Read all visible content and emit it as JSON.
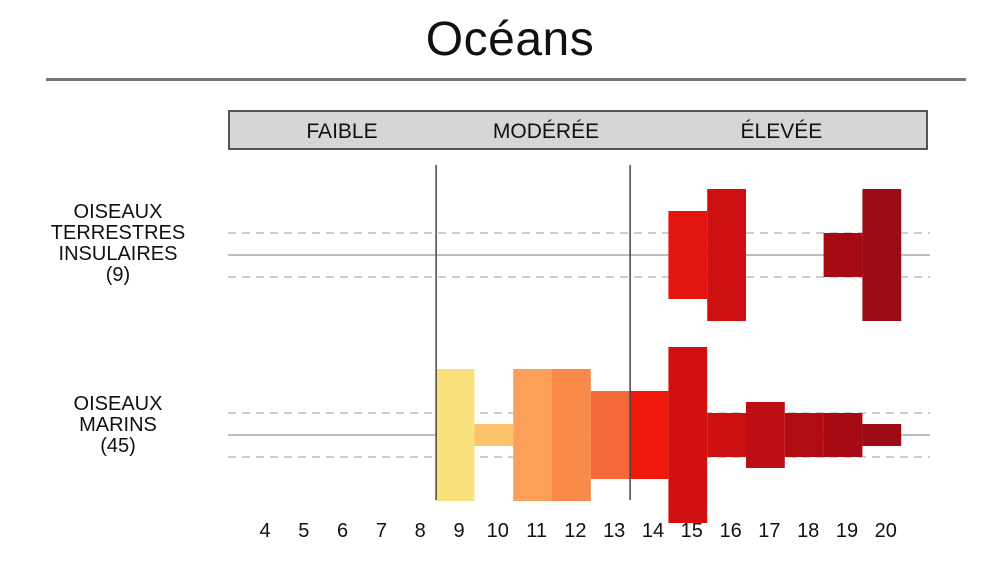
{
  "title": "Océans",
  "chart_data": {
    "type": "bar",
    "x_range": [
      4,
      20
    ],
    "x_ticks": [
      4,
      5,
      6,
      7,
      8,
      9,
      10,
      11,
      12,
      13,
      14,
      15,
      16,
      17,
      18,
      19,
      20
    ],
    "bands": [
      {
        "label": "FAIBLE",
        "from": 4,
        "to": 9
      },
      {
        "label": "MODÉRÉE",
        "from": 9,
        "to": 14
      },
      {
        "label": "ÉLEVÉE",
        "from": 14,
        "to": 20
      }
    ],
    "dividers": [
      9,
      14
    ],
    "colors": [
      "#f9e07a",
      "#fdc26c",
      "#fca059",
      "#f98a4a",
      "#f4693a",
      "#ef1a0c",
      "#d31010",
      "#be0d14",
      "#a80a14",
      "#9d0b14"
    ],
    "rows": [
      {
        "label_lines": [
          "OISEAUX",
          "TERRESTRES",
          "INSULAIRES",
          "(9)"
        ],
        "values": [
          {
            "x": 15,
            "count": 2,
            "color": "#e31510"
          },
          {
            "x": 16,
            "count": 3,
            "color": "#cf1010"
          },
          {
            "x": 19,
            "count": 1,
            "color": "#a80a14"
          },
          {
            "x": 20,
            "count": 3,
            "color": "#9d0b14"
          }
        ]
      },
      {
        "label_lines": [
          "OISEAUX",
          "MARINS",
          "(45)"
        ],
        "values": [
          {
            "x": 9,
            "count": 3,
            "color": "#f9e07a"
          },
          {
            "x": 10,
            "count": 0.5,
            "color": "#fdc26c"
          },
          {
            "x": 11,
            "count": 3,
            "color": "#fca059"
          },
          {
            "x": 12,
            "count": 3,
            "color": "#f98a4a"
          },
          {
            "x": 13,
            "count": 2,
            "color": "#f4693a"
          },
          {
            "x": 14,
            "count": 2,
            "color": "#ef1a0c"
          },
          {
            "x": 15,
            "count": 4,
            "color": "#d31010"
          },
          {
            "x": 16,
            "count": 1,
            "color": "#cc1010"
          },
          {
            "x": 17,
            "count": 1.5,
            "color": "#be0d14"
          },
          {
            "x": 18,
            "count": 1,
            "color": "#b00c14"
          },
          {
            "x": 19,
            "count": 1,
            "color": "#a80a14"
          },
          {
            "x": 20,
            "count": 0.5,
            "color": "#9d0b14"
          }
        ]
      }
    ]
  }
}
